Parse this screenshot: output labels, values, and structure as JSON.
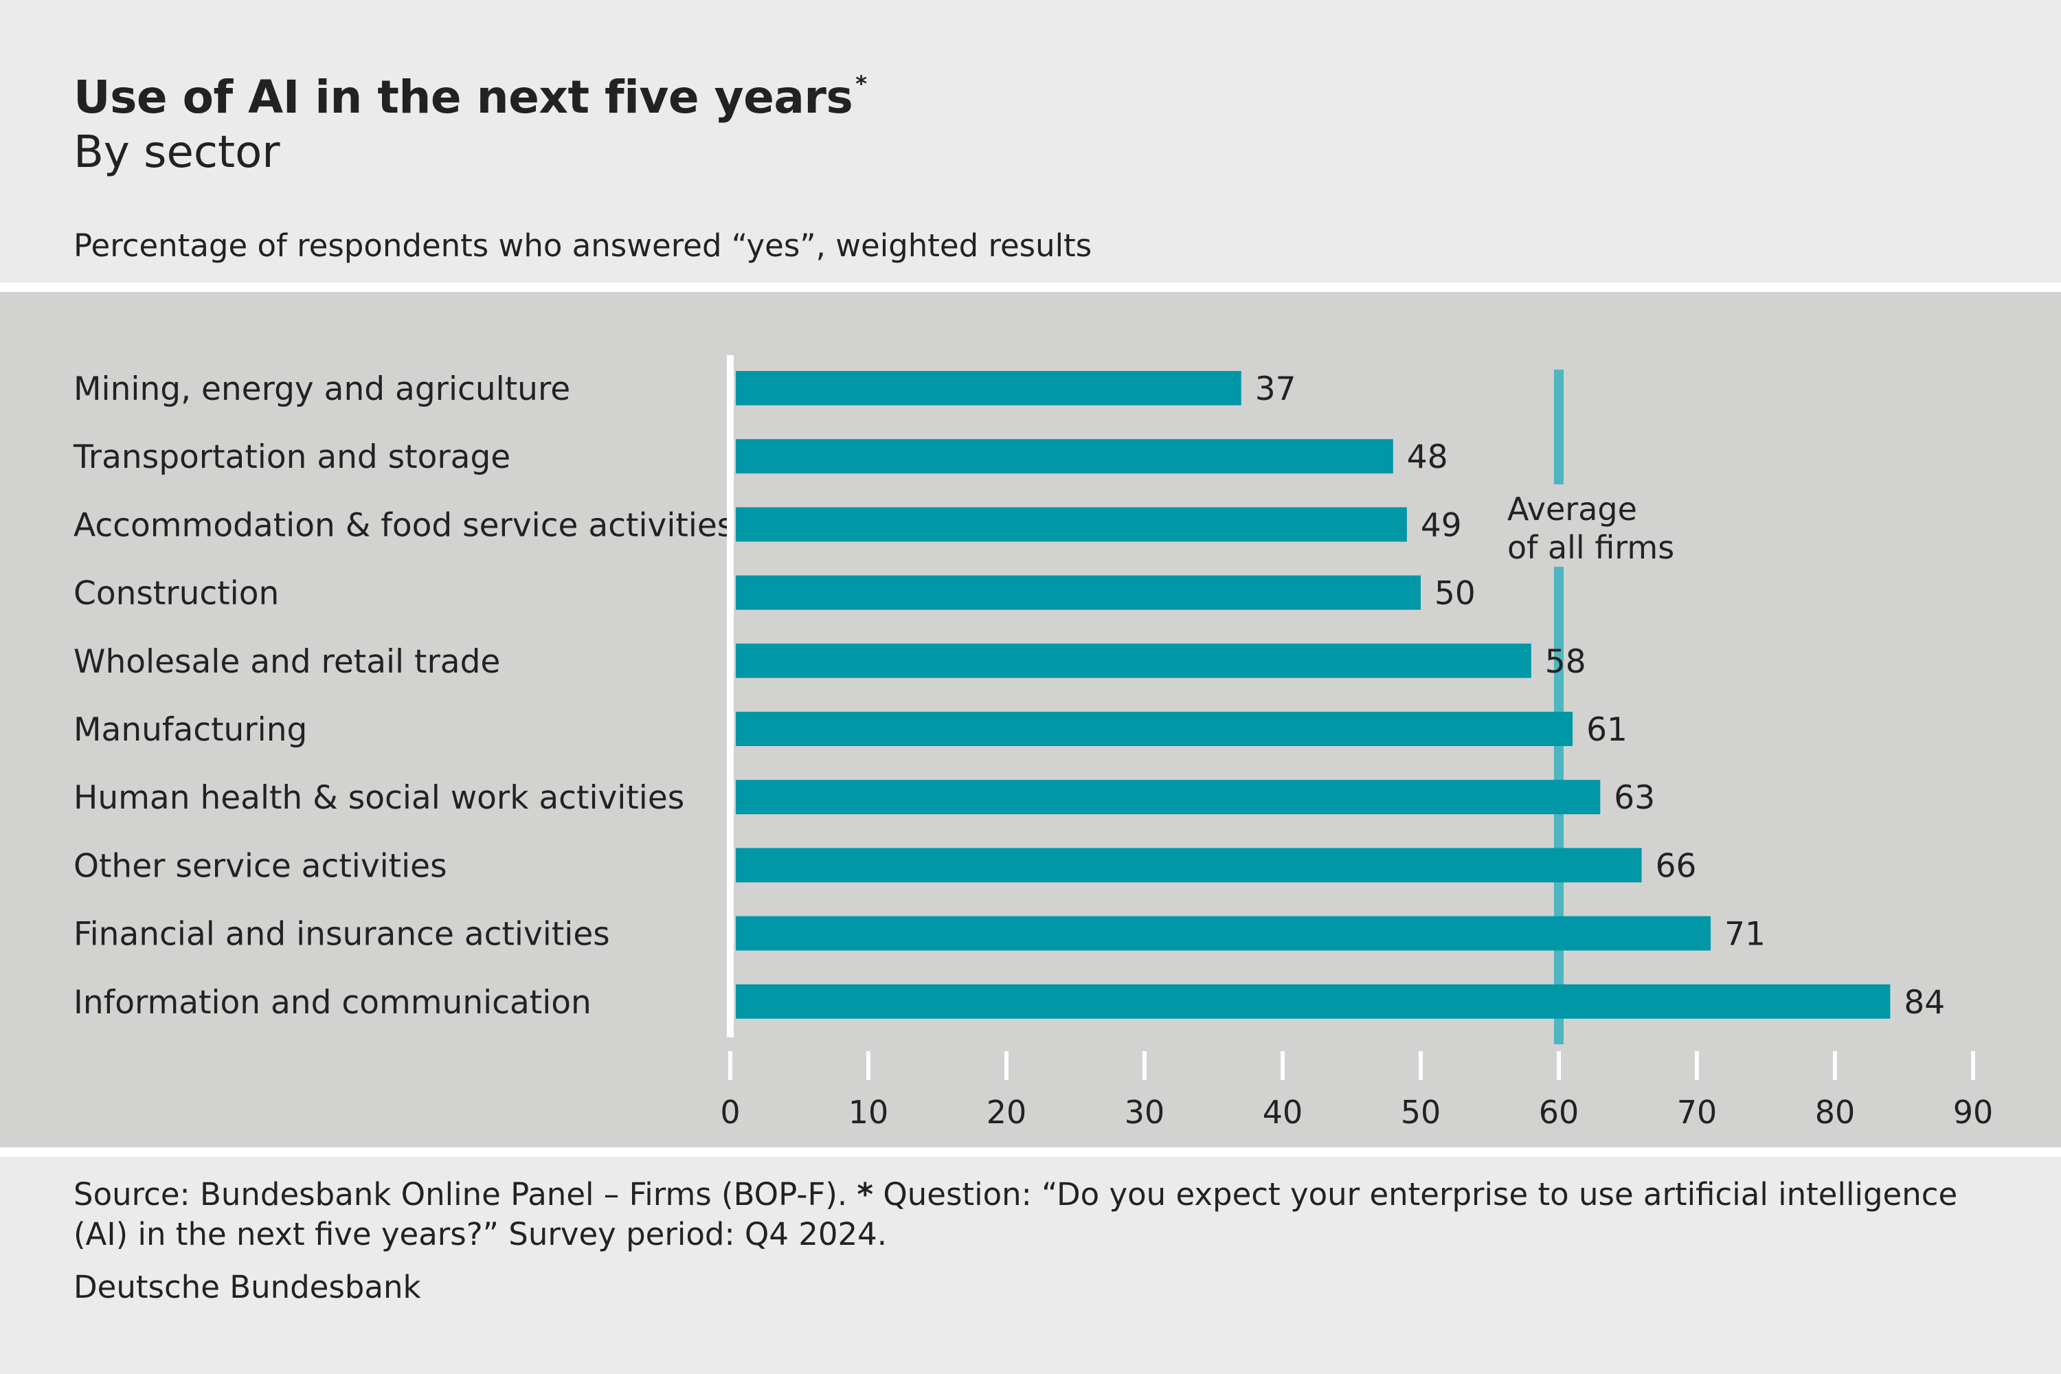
{
  "header": {
    "title": "Use of AI in the next five years",
    "title_marker": "*",
    "subtitle": "By sector",
    "note": "Percentage of respondents who answered “yes”, weighted results"
  },
  "colors": {
    "bar": "#0097a7",
    "average_line": "#4db6c0",
    "panel": "#d2d2d1",
    "background": "#ebebeb"
  },
  "chart_data": {
    "type": "bar",
    "orientation": "horizontal",
    "categories": [
      "Mining, energy and agriculture",
      "Transportation and storage",
      "Accommodation & food service activities",
      "Construction",
      "Wholesale and retail trade",
      "Manufacturing",
      "Human health & social work activities",
      "Other service activities",
      "Financial and insurance activities",
      "Information and communication"
    ],
    "values": [
      37,
      48,
      49,
      50,
      58,
      61,
      63,
      66,
      71,
      84
    ],
    "xlim": [
      0,
      90
    ],
    "xticks": [
      0,
      10,
      20,
      30,
      40,
      50,
      60,
      70,
      80,
      90
    ],
    "xtick_labels": [
      "0",
      "10",
      "20",
      "30",
      "40",
      "50",
      "60",
      "70",
      "80",
      "90"
    ],
    "reference_line": {
      "value": 60,
      "label_lines": [
        "Average",
        "of all firms"
      ]
    },
    "data_labels": true,
    "grid": false,
    "legend": "none"
  },
  "footer": {
    "source_prefix": "Source: Bundesbank Online Panel – Firms (BOP-F). ",
    "source_marker": "*",
    "source_rest": " Question: “Do you expect your enterprise to use artificial intelligence (AI) in the next five years?” Survey period: Q4 2024.",
    "credit": "Deutsche Bundesbank"
  }
}
